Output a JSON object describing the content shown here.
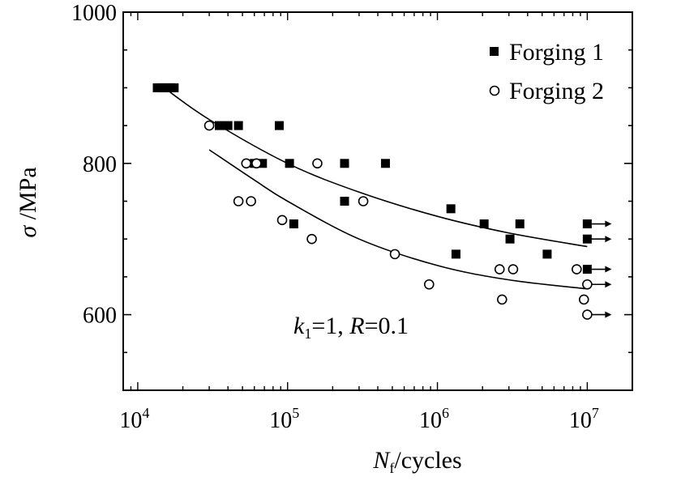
{
  "chart_data": {
    "type": "scatter",
    "xscale": "log",
    "xlim": [
      8000,
      20000000
    ],
    "ylim": [
      500,
      1000
    ],
    "xlabel": {
      "main": "N",
      "sub": "f",
      "rest": "/cycles"
    },
    "ylabel": {
      "italic": "σ",
      "rest": " /MPa"
    },
    "y_ticks": [
      600,
      800,
      1000
    ],
    "x_ticks": [
      {
        "value": 10000,
        "base": "10",
        "exp": "4"
      },
      {
        "value": 100000,
        "base": "10",
        "exp": "5"
      },
      {
        "value": 1000000,
        "base": "10",
        "exp": "6"
      },
      {
        "value": 10000000,
        "base": "10",
        "exp": "7"
      }
    ],
    "annotation": {
      "k": "k",
      "k_sub": "1",
      "k_rest": "=1,  ",
      "r": "R",
      "r_rest": "=0.1"
    },
    "legend_position": "top-right",
    "grid": false,
    "series": [
      {
        "name": "Forging 1",
        "marker": "filled-square",
        "points": [
          [
            13500,
            900
          ],
          [
            14500,
            900
          ],
          [
            15500,
            900
          ],
          [
            16500,
            900
          ],
          [
            17500,
            900
          ],
          [
            35000,
            850
          ],
          [
            40000,
            850
          ],
          [
            47000,
            850
          ],
          [
            60000,
            800
          ],
          [
            68000,
            800
          ],
          [
            88000,
            850
          ],
          [
            103000,
            800
          ],
          [
            110000,
            720
          ],
          [
            240000,
            800
          ],
          [
            240000,
            750
          ],
          [
            450000,
            800
          ],
          [
            1230000,
            740
          ],
          [
            1330000,
            680
          ],
          [
            2050000,
            720
          ],
          [
            3050000,
            700
          ],
          [
            3550000,
            720
          ],
          [
            5400000,
            680
          ],
          [
            10000000,
            720
          ],
          [
            10000000,
            700
          ],
          [
            10000000,
            660
          ]
        ],
        "runouts": [
          [
            10000000,
            720
          ],
          [
            10000000,
            700
          ],
          [
            10000000,
            660
          ]
        ]
      },
      {
        "name": "Forging 2",
        "marker": "open-circle",
        "points": [
          [
            30000,
            850
          ],
          [
            47000,
            750
          ],
          [
            53000,
            800
          ],
          [
            57000,
            750
          ],
          [
            62000,
            800
          ],
          [
            92000,
            725
          ],
          [
            145000,
            700
          ],
          [
            158000,
            800
          ],
          [
            320000,
            750
          ],
          [
            520000,
            680
          ],
          [
            880000,
            640
          ],
          [
            2600000,
            660
          ],
          [
            2700000,
            620
          ],
          [
            3200000,
            660
          ],
          [
            8500000,
            660
          ],
          [
            9500000,
            620
          ],
          [
            10000000,
            640
          ],
          [
            10000000,
            600
          ]
        ],
        "runouts": [
          [
            10000000,
            640
          ],
          [
            10000000,
            600
          ]
        ]
      }
    ],
    "fit_curves": [
      {
        "series": "Forging 1",
        "points": [
          [
            15000,
            900
          ],
          [
            30000,
            858
          ],
          [
            100000,
            800
          ],
          [
            300000,
            762
          ],
          [
            1000000,
            730
          ],
          [
            3000000,
            708
          ],
          [
            10000000,
            690
          ]
        ]
      },
      {
        "series": "Forging 2",
        "points": [
          [
            30000,
            818
          ],
          [
            60000,
            778
          ],
          [
            100000,
            750
          ],
          [
            300000,
            700
          ],
          [
            1000000,
            665
          ],
          [
            3000000,
            646
          ],
          [
            10000000,
            634
          ]
        ]
      }
    ]
  }
}
